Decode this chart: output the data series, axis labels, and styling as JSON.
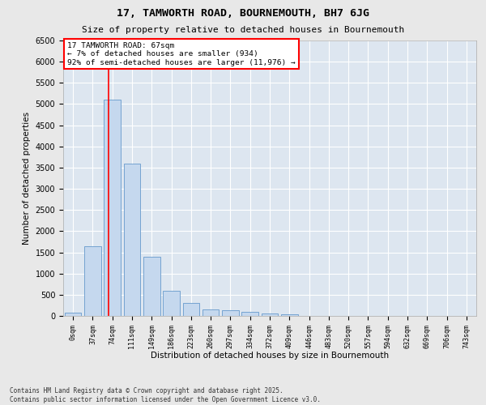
{
  "title": "17, TAMWORTH ROAD, BOURNEMOUTH, BH7 6JG",
  "subtitle": "Size of property relative to detached houses in Bournemouth",
  "xlabel": "Distribution of detached houses by size in Bournemouth",
  "ylabel": "Number of detached properties",
  "bar_color": "#c5d8ee",
  "bar_edge_color": "#6699cc",
  "axes_bg_color": "#dde6f0",
  "fig_bg_color": "#e8e8e8",
  "grid_color": "#ffffff",
  "categories": [
    "0sqm",
    "37sqm",
    "74sqm",
    "111sqm",
    "149sqm",
    "186sqm",
    "223sqm",
    "260sqm",
    "297sqm",
    "334sqm",
    "372sqm",
    "409sqm",
    "446sqm",
    "483sqm",
    "520sqm",
    "557sqm",
    "594sqm",
    "632sqm",
    "669sqm",
    "706sqm",
    "743sqm"
  ],
  "values": [
    70,
    1650,
    5100,
    3600,
    1400,
    600,
    310,
    160,
    130,
    100,
    55,
    30,
    0,
    0,
    0,
    0,
    0,
    0,
    0,
    0,
    0
  ],
  "ylim": [
    0,
    6500
  ],
  "yticks": [
    0,
    500,
    1000,
    1500,
    2000,
    2500,
    3000,
    3500,
    4000,
    4500,
    5000,
    5500,
    6000,
    6500
  ],
  "property_line_x": 1.82,
  "annotation_title": "17 TAMWORTH ROAD: 67sqm",
  "annotation_line1": "← 7% of detached houses are smaller (934)",
  "annotation_line2": "92% of semi-detached houses are larger (11,976) →",
  "footer_line1": "Contains HM Land Registry data © Crown copyright and database right 2025.",
  "footer_line2": "Contains public sector information licensed under the Open Government Licence v3.0."
}
